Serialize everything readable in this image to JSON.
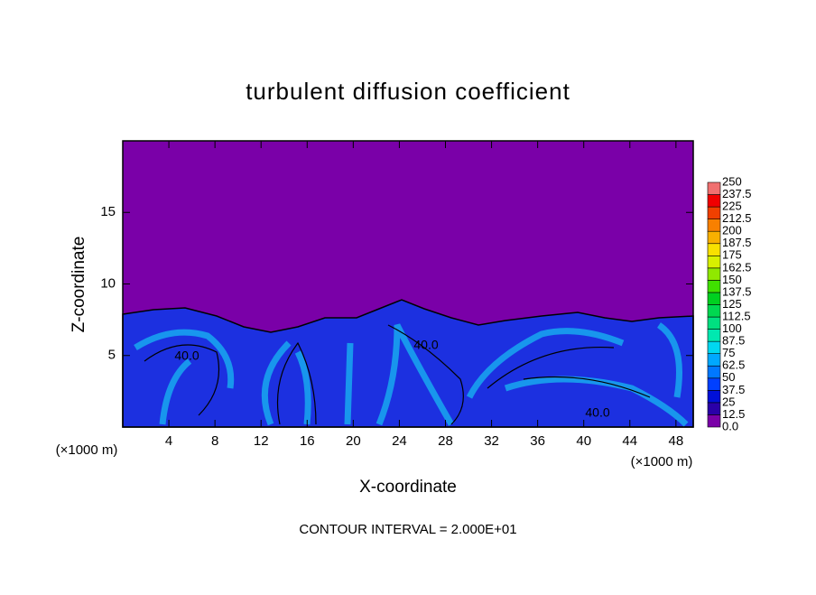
{
  "chart_data": {
    "type": "contour",
    "title": "turbulent diffusion coefficient",
    "xlabel": "X-coordinate",
    "ylabel": "Z-coordinate",
    "xunit": "(×1000 m)",
    "yunit": "(×1000 m)",
    "footnote": "CONTOUR INTERVAL = 2.000E+01",
    "contour_labels": [
      "40.0",
      "40.0",
      "40.0"
    ],
    "xlim": [
      0,
      49.5
    ],
    "xticks": [
      4,
      8,
      12,
      16,
      20,
      24,
      28,
      32,
      36,
      40,
      44,
      48
    ],
    "ylim": [
      0,
      20
    ],
    "yticks": [
      5,
      10,
      15
    ],
    "colorbar": {
      "ticks": [
        {
          "value": 0,
          "label": "0.0"
        },
        12.5,
        25,
        37.5,
        50,
        62.5,
        75,
        87.5,
        100,
        112.5,
        125,
        137.5,
        150,
        162.5,
        175,
        187.5,
        200,
        212.5,
        225,
        237.5,
        250
      ],
      "colors": [
        "#7a00a8",
        "#2a00a8",
        "#0010d8",
        "#0040ff",
        "#0078ff",
        "#00a8ff",
        "#00d8f0",
        "#00e8b0",
        "#00e080",
        "#00d850",
        "#00d020",
        "#40e000",
        "#90e800",
        "#d8f000",
        "#f8e000",
        "#f8b000",
        "#f88000",
        "#f04000",
        "#f00000",
        "#f07070"
      ]
    }
  }
}
